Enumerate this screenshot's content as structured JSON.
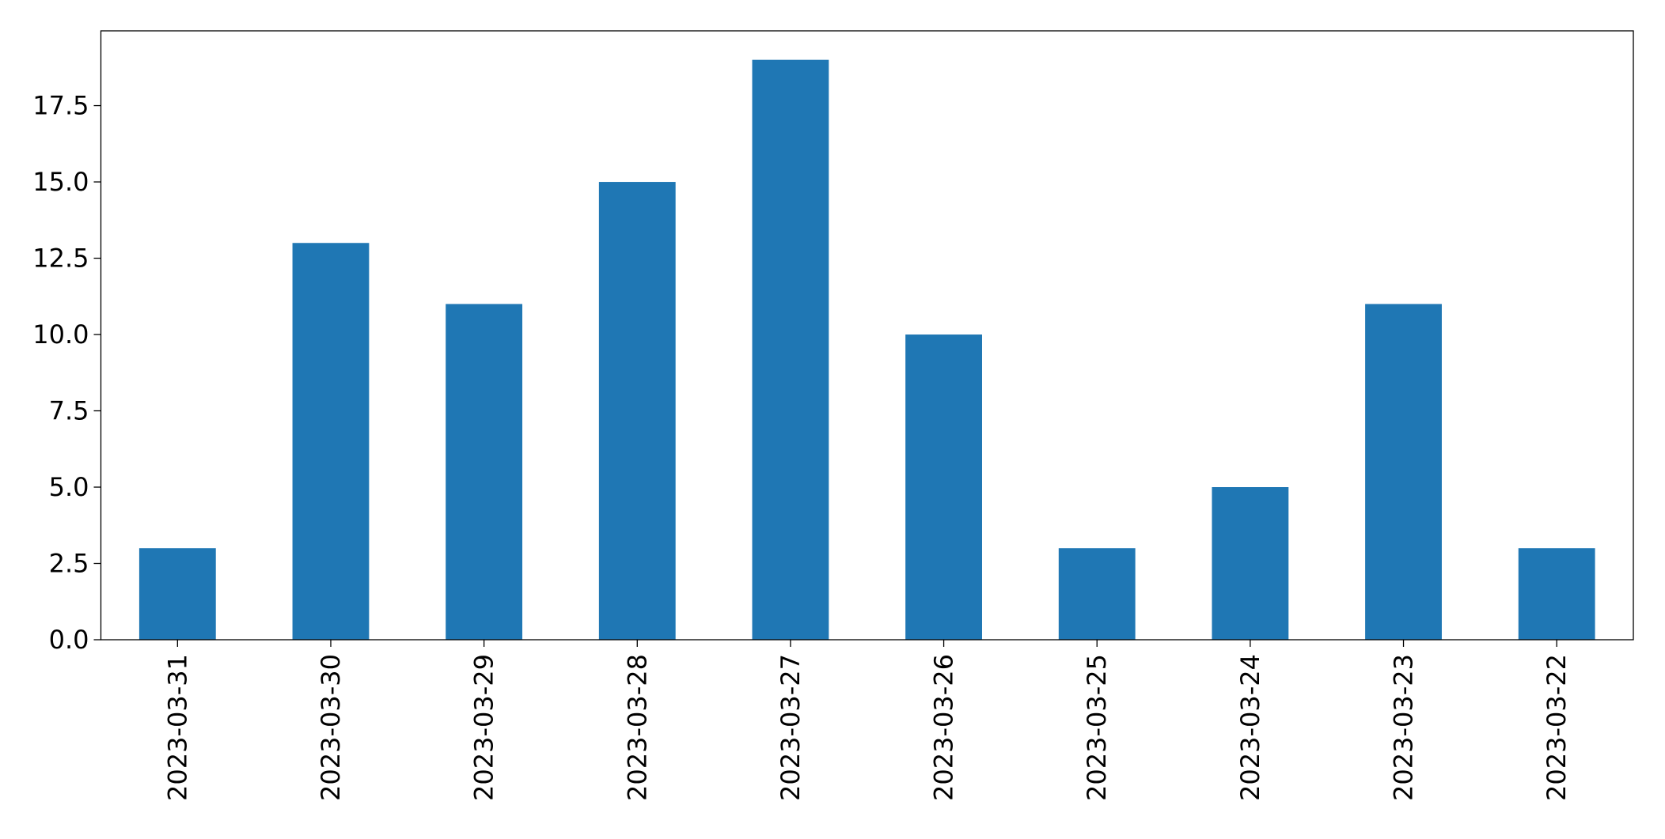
{
  "chart_data": {
    "type": "bar",
    "categories": [
      "2023-03-31",
      "2023-03-30",
      "2023-03-29",
      "2023-03-28",
      "2023-03-27",
      "2023-03-26",
      "2023-03-25",
      "2023-03-24",
      "2023-03-23",
      "2023-03-22"
    ],
    "values": [
      3,
      13,
      11,
      15,
      19,
      10,
      3,
      5,
      11,
      3
    ],
    "color": "#1f77b4",
    "ylim": [
      0,
      19.95
    ],
    "yticks": [
      {
        "value": 0,
        "label": "0.0"
      },
      2.5,
      {
        "value": 5,
        "label": "5.0"
      },
      7.5,
      {
        "value": 10,
        "label": "10.0"
      },
      12.5,
      {
        "value": 15,
        "label": "15.0"
      },
      17.5
    ],
    "grid": false
  }
}
